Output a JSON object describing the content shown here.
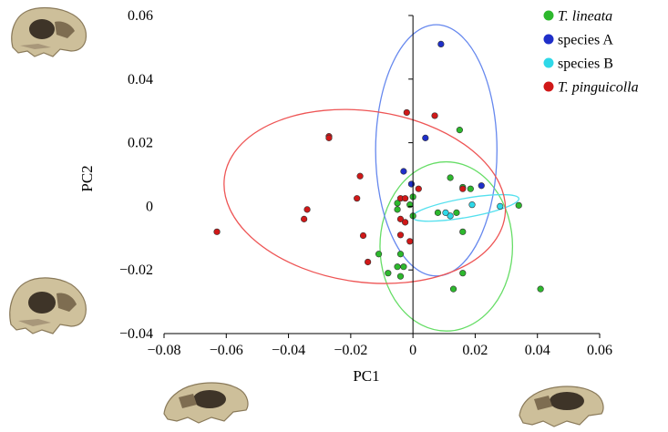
{
  "chart_data": {
    "type": "scatter",
    "title": "",
    "xlabel": "PC1",
    "ylabel": "PC2",
    "xlim": [
      -0.08,
      0.06
    ],
    "ylim": [
      -0.04,
      0.06
    ],
    "xticks": [
      "−0.08",
      "−0.06",
      "−0.04",
      "−0.02",
      "0",
      "0.02",
      "0.04",
      "0.06"
    ],
    "yticks": [
      "−0.04",
      "−0.02",
      "0",
      "0.02",
      "0.04",
      "0.06"
    ],
    "xtick_values": [
      -0.08,
      -0.06,
      -0.04,
      -0.02,
      0,
      0.02,
      0.04,
      0.06
    ],
    "ytick_values": [
      -0.04,
      -0.02,
      0,
      0.02,
      0.04,
      0.06
    ],
    "grid": false,
    "legend_position": "top-right",
    "series": [
      {
        "name": "T. lineata",
        "italic": true,
        "color": "#2db82d",
        "ellipse_color": "#66dd66",
        "points": [
          [
            0.015,
            0.024
          ],
          [
            0.012,
            0.009
          ],
          [
            0.016,
            0.006
          ],
          [
            0.0185,
            0.0055
          ],
          [
            0.0,
            0.003
          ],
          [
            -0.001,
            0.0005
          ],
          [
            -0.005,
            0.001
          ],
          [
            -0.005,
            -0.001
          ],
          [
            0.0,
            -0.003
          ],
          [
            0.008,
            -0.002
          ],
          [
            0.014,
            -0.002
          ],
          [
            0.016,
            -0.008
          ],
          [
            0.034,
            0.0003
          ],
          [
            -0.004,
            -0.015
          ],
          [
            -0.011,
            -0.015
          ],
          [
            -0.005,
            -0.019
          ],
          [
            -0.003,
            -0.019
          ],
          [
            -0.008,
            -0.021
          ],
          [
            -0.004,
            -0.022
          ],
          [
            0.016,
            -0.021
          ],
          [
            0.013,
            -0.026
          ],
          [
            0.041,
            -0.026
          ]
        ],
        "ellipse": {
          "cx": 0.0107,
          "cy": -0.0126,
          "rx": 0.0213,
          "ry": 0.0266
        }
      },
      {
        "name": "species A",
        "italic": false,
        "color": "#1f2fc9",
        "ellipse_color": "#6688ee",
        "points": [
          [
            0.009,
            0.051
          ],
          [
            0.004,
            0.0215
          ],
          [
            -0.003,
            0.011
          ],
          [
            -0.0005,
            0.007
          ],
          [
            0.022,
            0.0065
          ]
        ],
        "ellipse": {
          "cx": 0.0075,
          "cy": 0.0176,
          "rx": 0.0195,
          "ry": 0.0395
        }
      },
      {
        "name": "species B",
        "italic": false,
        "color": "#2ed8e8",
        "ellipse_color": "#55e0ee",
        "points": [
          [
            0.012,
            -0.003
          ],
          [
            0.019,
            0.0005
          ],
          [
            0.028,
            0.0
          ],
          [
            0.0105,
            -0.002
          ]
        ],
        "ellipse": {
          "cx": 0.0169,
          "cy": -0.0005,
          "rx": 0.0174,
          "ry": 0.003,
          "rotate_deg": -10
        }
      },
      {
        "name": "T. pinguicolla",
        "italic": true,
        "color": "#d01818",
        "ellipse_color": "#ee5555",
        "points": [
          [
            -0.002,
            0.0295
          ],
          [
            0.007,
            0.0285
          ],
          [
            -0.027,
            0.022
          ],
          [
            -0.027,
            0.0215
          ],
          [
            -0.017,
            0.0095
          ],
          [
            0.0018,
            0.0055
          ],
          [
            0.016,
            0.0055
          ],
          [
            -0.018,
            0.0025
          ],
          [
            -0.004,
            0.0025
          ],
          [
            -0.0025,
            0.0025
          ],
          [
            -0.034,
            -0.001
          ],
          [
            -0.035,
            -0.004
          ],
          [
            -0.004,
            -0.004
          ],
          [
            -0.0025,
            -0.005
          ],
          [
            -0.016,
            -0.0092
          ],
          [
            -0.004,
            -0.009
          ],
          [
            -0.001,
            -0.011
          ],
          [
            -0.0145,
            -0.0175
          ],
          [
            -0.063,
            -0.008
          ]
        ],
        "ellipse": {
          "cx": -0.0155,
          "cy": 0.0031,
          "rx": 0.0455,
          "ry": 0.0269,
          "rotate_deg": 8
        }
      }
    ]
  }
}
